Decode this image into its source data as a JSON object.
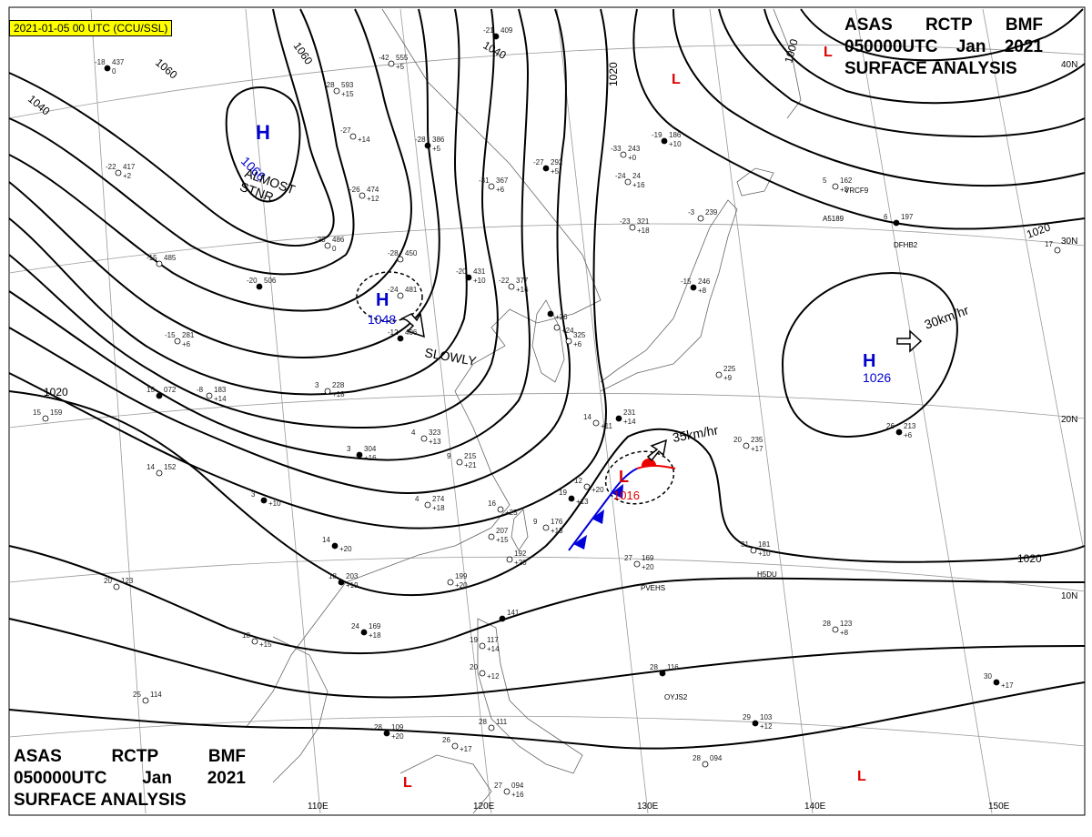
{
  "timestamp": "2021-01-05 00 UTC (CCU/SSL)",
  "title": {
    "line1": [
      "ASAS",
      "RCTP",
      "BMF"
    ],
    "line2": [
      "050000UTC",
      "Jan",
      "2021"
    ],
    "line3": "SURFACE ANALYSIS"
  },
  "isobar_labels": [
    "1060",
    "1060",
    "1040",
    "1040",
    "1020",
    "1000",
    "1020",
    "1020",
    "1020"
  ],
  "pressure_centers": [
    {
      "type": "H",
      "value": "1066",
      "note": "ALMOST STNR"
    },
    {
      "type": "H",
      "value": "1048",
      "note": "SLOWLY"
    },
    {
      "type": "H",
      "value": "1026",
      "note": "30km/hr"
    },
    {
      "type": "L",
      "value": "1016",
      "note": "35km/hr"
    },
    {
      "type": "L",
      "value": "",
      "note": ""
    },
    {
      "type": "L",
      "value": "",
      "note": ""
    },
    {
      "type": "L",
      "value": "",
      "note": ""
    },
    {
      "type": "L",
      "value": "",
      "note": ""
    }
  ],
  "longitude_labels": [
    "110E",
    "120E",
    "130E",
    "140E",
    "150E"
  ],
  "latitude_labels": [
    "40N",
    "30N",
    "20N",
    "10N"
  ],
  "ship_ids": [
    "PVEHS",
    "H5DU",
    "OYJS2",
    "A5189",
    "DFHB2",
    "VRCF9"
  ],
  "station_obs": [
    {
      "t": "-18",
      "p": "437",
      "d": "0"
    },
    {
      "t": "-28",
      "p": "593",
      "d": "+15"
    },
    {
      "t": "-42",
      "p": "555",
      "d": "+5"
    },
    {
      "t": "-21",
      "p": "409",
      "d": ""
    },
    {
      "t": "-22",
      "p": "417",
      "d": "+2"
    },
    {
      "t": "-27",
      "p": "",
      "d": "+14"
    },
    {
      "t": "-28",
      "p": "386",
      "d": "+5"
    },
    {
      "t": "-26",
      "p": "474",
      "d": "+12"
    },
    {
      "t": "-31",
      "p": "367",
      "d": "+6"
    },
    {
      "t": "-27",
      "p": "292",
      "d": "+5"
    },
    {
      "t": "-33",
      "p": "243",
      "d": "+0"
    },
    {
      "t": "-24",
      "p": "24",
      "d": "+16"
    },
    {
      "t": "-19",
      "p": "186",
      "d": "+10"
    },
    {
      "t": "-23",
      "p": "486",
      "d": "0"
    },
    {
      "t": "-15",
      "p": "485",
      "d": ""
    },
    {
      "t": "-20",
      "p": "506",
      "d": ""
    },
    {
      "t": "-28",
      "p": "450",
      "d": ""
    },
    {
      "t": "-24",
      "p": "481",
      "d": ""
    },
    {
      "t": "-20",
      "p": "431",
      "d": "+10"
    },
    {
      "t": "-22",
      "p": "377",
      "d": "+16"
    },
    {
      "t": "-23",
      "p": "321",
      "d": "+18"
    },
    {
      "t": "-15",
      "p": "246",
      "d": "+8"
    },
    {
      "t": "-3",
      "p": "239",
      "d": ""
    },
    {
      "t": "-15",
      "p": "281",
      "d": "+6"
    },
    {
      "t": "-12",
      "p": "406",
      "d": ""
    },
    {
      "t": "-8",
      "p": "183",
      "d": "+14"
    },
    {
      "t": "3",
      "p": "228",
      "d": "+18"
    },
    {
      "t": "15",
      "p": "072",
      "d": ""
    },
    {
      "t": "15",
      "p": "159",
      "d": ""
    },
    {
      "t": "4",
      "p": "323",
      "d": "+13"
    },
    {
      "t": "3",
      "p": "304",
      "d": "+16"
    },
    {
      "t": "9",
      "p": "215",
      "d": "+21"
    },
    {
      "t": "14",
      "p": "152",
      "d": ""
    },
    {
      "t": "3",
      "p": "",
      "d": "+10"
    },
    {
      "t": "4",
      "p": "274",
      "d": "+18"
    },
    {
      "t": "16",
      "p": "",
      "d": "+25"
    },
    {
      "t": "19",
      "p": "",
      "d": "+13"
    },
    {
      "t": "12",
      "p": "",
      "d": "+20"
    },
    {
      "t": "9",
      "p": "176",
      "d": "+13"
    },
    {
      "t": "14",
      "p": "",
      "d": "+20"
    },
    {
      "t": "",
      "p": "207",
      "d": "+15"
    },
    {
      "t": "",
      "p": "192",
      "d": "+20"
    },
    {
      "t": "18",
      "p": "203",
      "d": "+19"
    },
    {
      "t": "",
      "p": "199",
      "d": "+20"
    },
    {
      "t": "20",
      "p": "123",
      "d": ""
    },
    {
      "t": "24",
      "p": "169",
      "d": "+18"
    },
    {
      "t": "18",
      "p": "",
      "d": "+15"
    },
    {
      "t": "27",
      "p": "169",
      "d": "+20"
    },
    {
      "t": "",
      "p": "141",
      "d": ""
    },
    {
      "t": "19",
      "p": "117",
      "d": "+14"
    },
    {
      "t": "20",
      "p": "",
      "d": "+12"
    },
    {
      "t": "28",
      "p": "116",
      "d": ""
    },
    {
      "t": "28",
      "p": "123",
      "d": "+8"
    },
    {
      "t": "25",
      "p": "114",
      "d": ""
    },
    {
      "t": "28",
      "p": "109",
      "d": "+20"
    },
    {
      "t": "26",
      "p": "",
      "d": "+17"
    },
    {
      "t": "28",
      "p": "111",
      "d": ""
    },
    {
      "t": "29",
      "p": "103",
      "d": "+12"
    },
    {
      "t": "28",
      "p": "094",
      "d": ""
    },
    {
      "t": "27",
      "p": "094",
      "d": "+16"
    },
    {
      "t": "30",
      "p": "",
      "d": "+17"
    },
    {
      "t": "31",
      "p": "181",
      "d": "+10"
    },
    {
      "t": "20",
      "p": "235",
      "d": "+17"
    },
    {
      "t": "26",
      "p": "213",
      "d": "+6"
    },
    {
      "t": "14",
      "p": "",
      "d": "+11"
    },
    {
      "t": "5",
      "p": "162",
      "d": "+3"
    },
    {
      "t": "6",
      "p": "197",
      "d": ""
    },
    {
      "t": "17",
      "p": "",
      "d": ""
    },
    {
      "t": "",
      "p": "225",
      "d": "+9"
    },
    {
      "t": "",
      "p": "231",
      "d": "+14"
    },
    {
      "t": "",
      "p": "325",
      "d": "+6"
    },
    {
      "t": "",
      "p": "",
      "d": "+24"
    },
    {
      "t": "",
      "p": "",
      "d": "+26"
    }
  ],
  "colors": {
    "isobar": "#000000",
    "high": "#0000cc",
    "low": "#dd0000",
    "front_cold": "#0000dd",
    "front_warm": "#ee0000",
    "badge": "#ffff00",
    "grid": "#999999",
    "coast": "#666666"
  }
}
